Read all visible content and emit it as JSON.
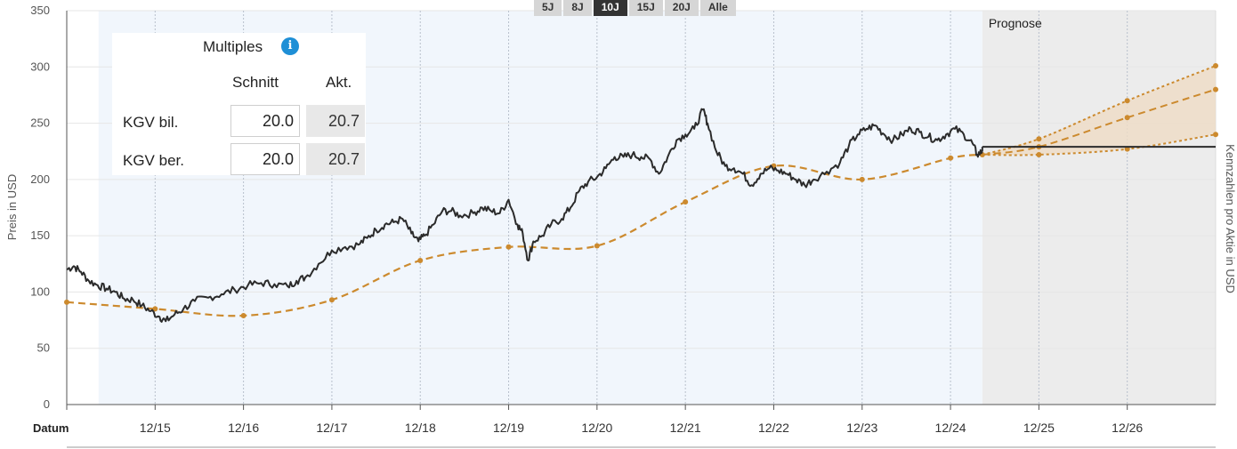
{
  "range_buttons": [
    {
      "label": "5J",
      "active": false
    },
    {
      "label": "8J",
      "active": false
    },
    {
      "label": "10J",
      "active": true
    },
    {
      "label": "15J",
      "active": false
    },
    {
      "label": "20J",
      "active": false
    },
    {
      "label": "Alle",
      "active": false
    }
  ],
  "multiples": {
    "title": "Multiples",
    "info_icon_glyph": "i",
    "col_avg": "Schnitt",
    "col_current": "Akt.",
    "rows": [
      {
        "label": "KGV bil.",
        "avg": "20.0",
        "current": "20.7"
      },
      {
        "label": "KGV ber.",
        "avg": "20.0",
        "current": "20.7"
      }
    ]
  },
  "chart_data": {
    "type": "line",
    "title": "",
    "xlabel": "Datum",
    "ylabel": "Preis in USD",
    "y2label": "Kennzahlen pro Aktie in USD",
    "ylim": [
      0,
      350
    ],
    "yticks": [
      0,
      50,
      100,
      150,
      200,
      250,
      300,
      350
    ],
    "xlim": [
      2014.5,
      2027.5
    ],
    "xticks": [
      {
        "label": "12/15",
        "x": 2015.5
      },
      {
        "label": "12/16",
        "x": 2016.5
      },
      {
        "label": "12/17",
        "x": 2017.5
      },
      {
        "label": "12/18",
        "x": 2018.5
      },
      {
        "label": "12/19",
        "x": 2019.5
      },
      {
        "label": "12/20",
        "x": 2020.5
      },
      {
        "label": "12/21",
        "x": 2021.5
      },
      {
        "label": "12/22",
        "x": 2022.5
      },
      {
        "label": "12/23",
        "x": 2023.5
      },
      {
        "label": "12/24",
        "x": 2024.5
      },
      {
        "label": "12/25",
        "x": 2025.5
      },
      {
        "label": "12/26",
        "x": 2026.5
      }
    ],
    "grid": true,
    "history_band_x": [
      2014.86,
      2024.86
    ],
    "forecast_band_x": [
      2024.86,
      2027.5
    ],
    "forecast_label": "Prognose",
    "colors": {
      "price": "#2b2b2b",
      "fair_value": "#cc8a2e",
      "band": "#f1f6fc",
      "forecast_band": "#ececec",
      "forecast_fill": "#efdcc6"
    },
    "series": [
      {
        "kind": "price",
        "points": [
          [
            2014.5,
            120
          ],
          [
            2014.58,
            123
          ],
          [
            2014.66,
            118
          ],
          [
            2014.75,
            110
          ],
          [
            2014.85,
            106
          ],
          [
            2014.95,
            103
          ],
          [
            2015.05,
            100
          ],
          [
            2015.15,
            94
          ],
          [
            2015.25,
            93
          ],
          [
            2015.35,
            88
          ],
          [
            2015.45,
            83
          ],
          [
            2015.55,
            78
          ],
          [
            2015.62,
            74
          ],
          [
            2015.72,
            80
          ],
          [
            2015.82,
            85
          ],
          [
            2015.95,
            92
          ],
          [
            2016.1,
            95
          ],
          [
            2016.25,
            98
          ],
          [
            2016.4,
            102
          ],
          [
            2016.55,
            106
          ],
          [
            2016.7,
            108
          ],
          [
            2016.85,
            107
          ],
          [
            2017.0,
            105
          ],
          [
            2017.1,
            110
          ],
          [
            2017.2,
            113
          ],
          [
            2017.35,
            125
          ],
          [
            2017.5,
            137
          ],
          [
            2017.65,
            140
          ],
          [
            2017.8,
            142
          ],
          [
            2017.9,
            148
          ],
          [
            2018.0,
            155
          ],
          [
            2018.1,
            160
          ],
          [
            2018.2,
            162
          ],
          [
            2018.3,
            165
          ],
          [
            2018.4,
            152
          ],
          [
            2018.48,
            145
          ],
          [
            2018.55,
            150
          ],
          [
            2018.65,
            160
          ],
          [
            2018.75,
            172
          ],
          [
            2018.85,
            172
          ],
          [
            2018.95,
            168
          ],
          [
            2019.1,
            170
          ],
          [
            2019.2,
            175
          ],
          [
            2019.3,
            172
          ],
          [
            2019.4,
            170
          ],
          [
            2019.5,
            182
          ],
          [
            2019.6,
            160
          ],
          [
            2019.66,
            152
          ],
          [
            2019.72,
            128
          ],
          [
            2019.78,
            145
          ],
          [
            2019.88,
            150
          ],
          [
            2019.98,
            160
          ],
          [
            2020.1,
            165
          ],
          [
            2020.2,
            175
          ],
          [
            2020.3,
            190
          ],
          [
            2020.4,
            198
          ],
          [
            2020.5,
            202
          ],
          [
            2020.6,
            210
          ],
          [
            2020.7,
            220
          ],
          [
            2020.8,
            220
          ],
          [
            2020.9,
            222
          ],
          [
            2021.0,
            220
          ],
          [
            2021.1,
            218
          ],
          [
            2021.2,
            205
          ],
          [
            2021.3,
            220
          ],
          [
            2021.4,
            235
          ],
          [
            2021.5,
            240
          ],
          [
            2021.6,
            245
          ],
          [
            2021.7,
            262
          ],
          [
            2021.75,
            250
          ],
          [
            2021.85,
            225
          ],
          [
            2021.95,
            212
          ],
          [
            2022.05,
            210
          ],
          [
            2022.15,
            205
          ],
          [
            2022.25,
            195
          ],
          [
            2022.35,
            205
          ],
          [
            2022.45,
            210
          ],
          [
            2022.55,
            208
          ],
          [
            2022.65,
            205
          ],
          [
            2022.75,
            200
          ],
          [
            2022.85,
            195
          ],
          [
            2022.95,
            200
          ],
          [
            2023.1,
            207
          ],
          [
            2023.25,
            215
          ],
          [
            2023.35,
            230
          ],
          [
            2023.45,
            240
          ],
          [
            2023.55,
            245
          ],
          [
            2023.65,
            248
          ],
          [
            2023.75,
            240
          ],
          [
            2023.85,
            235
          ],
          [
            2023.95,
            240
          ],
          [
            2024.05,
            245
          ],
          [
            2024.15,
            242
          ],
          [
            2024.25,
            238
          ],
          [
            2024.35,
            235
          ],
          [
            2024.45,
            240
          ],
          [
            2024.55,
            245
          ],
          [
            2024.65,
            240
          ],
          [
            2024.75,
            232
          ],
          [
            2024.8,
            222
          ],
          [
            2024.86,
            225
          ]
        ]
      },
      {
        "kind": "fair_value",
        "points": [
          [
            2014.5,
            91
          ],
          [
            2015.5,
            85
          ],
          [
            2016.5,
            79
          ],
          [
            2017.5,
            93
          ],
          [
            2018.5,
            128
          ],
          [
            2019.5,
            140
          ],
          [
            2020.5,
            141
          ],
          [
            2021.5,
            180
          ],
          [
            2022.5,
            212
          ],
          [
            2023.5,
            200
          ],
          [
            2024.5,
            219
          ],
          [
            2024.86,
            222
          ]
        ]
      },
      {
        "kind": "forecast_high",
        "points": [
          [
            2024.86,
            222
          ],
          [
            2025.5,
            236
          ],
          [
            2026.5,
            270
          ],
          [
            2027.5,
            301
          ]
        ]
      },
      {
        "kind": "forecast_mid",
        "points": [
          [
            2024.86,
            222
          ],
          [
            2025.5,
            229
          ],
          [
            2026.5,
            255
          ],
          [
            2027.5,
            280
          ]
        ]
      },
      {
        "kind": "forecast_low",
        "points": [
          [
            2024.86,
            222
          ],
          [
            2025.5,
            222
          ],
          [
            2026.5,
            227
          ],
          [
            2027.5,
            240
          ]
        ]
      },
      {
        "kind": "current_price_line",
        "points": [
          [
            2024.86,
            229
          ],
          [
            2027.5,
            229
          ]
        ]
      }
    ]
  }
}
